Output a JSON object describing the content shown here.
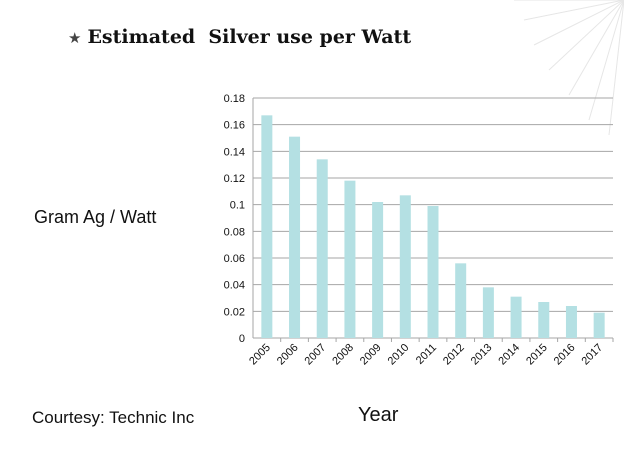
{
  "slide": {
    "title": "Estimated  Silver use per Watt",
    "star_icon": "star-icon",
    "courtesy": "Courtesy: Technic Inc"
  },
  "colors": {
    "bar": "#b4e0e3",
    "grid": "#a6a6a6",
    "text": "#111111"
  },
  "chart_data": {
    "type": "bar",
    "categories": [
      "2005",
      "2006",
      "2007",
      "2008",
      "2009",
      "2010",
      "2011",
      "2012",
      "2013",
      "2014",
      "2015",
      "2016",
      "2017"
    ],
    "values": [
      0.167,
      0.151,
      0.134,
      0.118,
      0.102,
      0.107,
      0.099,
      0.056,
      0.038,
      0.031,
      0.027,
      0.024,
      0.019
    ],
    "title": "",
    "xlabel": "Year",
    "ylabel": "Gram Ag / Watt",
    "ylim": [
      0,
      0.18
    ],
    "yticks": [
      0,
      0.02,
      0.04,
      0.06,
      0.08,
      0.1,
      0.12,
      0.14,
      0.16,
      0.18
    ],
    "ytick_labels": [
      "0",
      "0.02",
      "0.04",
      "0.06",
      "0.08",
      "0.1",
      "0.12",
      "0.14",
      "0.16",
      "0.18"
    ],
    "grid": true,
    "legend": "none"
  }
}
